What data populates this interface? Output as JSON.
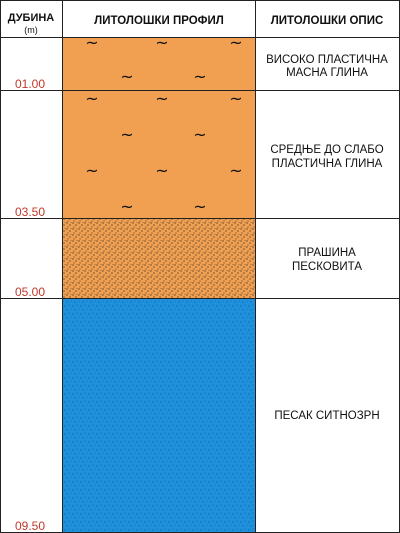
{
  "headers": {
    "depth": "ДУБИНА",
    "depth_unit": "(m)",
    "profile": "ЛИТОЛОШКИ ПРОФИЛ",
    "description": "ЛИТОЛОШКИ ОПИС"
  },
  "layers": [
    {
      "depth_label": "01.00",
      "description": [
        "ВИСОКО ПЛАСТИЧНА",
        "МАСНА ГЛИНА"
      ],
      "pattern": "clay",
      "fill": "#f0a050"
    },
    {
      "depth_label": "03.50",
      "description": [
        "СРЕДЊЕ ДО СЛАБО",
        "ПЛАСТИЧНА ГЛИНА"
      ],
      "pattern": "clay",
      "fill": "#f0a050"
    },
    {
      "depth_label": "05.00",
      "description": [
        "ПРАШИНА",
        "ПЕСКОВИТА"
      ],
      "pattern": "silt",
      "fill": "#f0a050"
    },
    {
      "depth_label": "09.50",
      "description": [
        "ПЕСАК СИТНОЗРН"
      ],
      "pattern": "sand",
      "fill": "#1e90dc"
    }
  ],
  "colors": {
    "depth_text": "#c0392b",
    "grid": "#222222",
    "clay": "#f0a050",
    "sand": "#1e90dc"
  }
}
